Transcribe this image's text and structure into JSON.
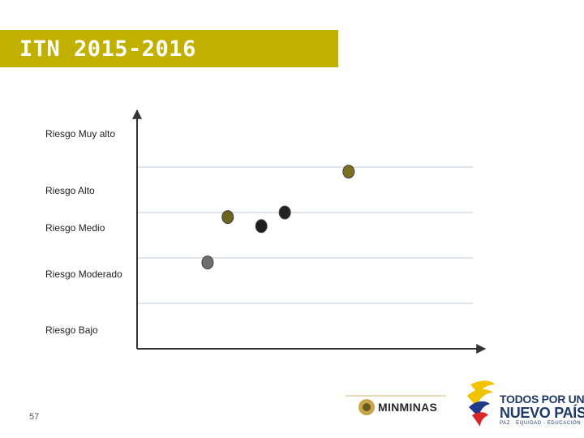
{
  "header": {
    "title": "ITN 2015-2016"
  },
  "footer": {
    "page_number": "57",
    "logo_minminas": "MINMINAS",
    "logo_tpun_line1": "TODOS POR UN",
    "logo_tpun_line2": "NUEVO PAÍS",
    "logo_tpun_line3": "PAZ · EQUIDAD · EDUCACIÓN"
  },
  "colors": {
    "title_bar": "#c2b000",
    "grid_line": "#b8cbe0",
    "axis": "#333333"
  },
  "chart_data": {
    "type": "scatter",
    "title": "",
    "xlabel": "",
    "ylabel": "",
    "bands": [
      "Riesgo Muy alto",
      "Riesgo Alto",
      "Riesgo Medio",
      "Riesgo Moderado",
      "Riesgo Bajo"
    ],
    "ylim": [
      0,
      5
    ],
    "xlim": [
      0,
      10
    ],
    "grid": true,
    "points": [
      {
        "x": 2.1,
        "y": 1.9,
        "color": "#6e6e6e"
      },
      {
        "x": 2.7,
        "y": 2.9,
        "color": "#6b6520"
      },
      {
        "x": 3.7,
        "y": 2.7,
        "color": "#1e1e1e"
      },
      {
        "x": 4.4,
        "y": 3.0,
        "color": "#222222"
      },
      {
        "x": 6.3,
        "y": 3.9,
        "color": "#7a7220"
      }
    ]
  }
}
